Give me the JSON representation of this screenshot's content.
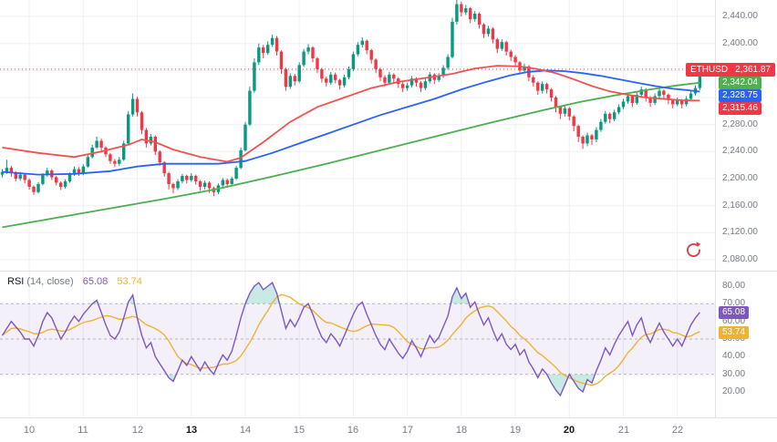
{
  "rsi_legend": {
    "title": "RSI",
    "params": "(14, close)",
    "value": "65.08",
    "ma_value": "53.74"
  },
  "colors": {
    "up": "#089981",
    "down": "#f23645",
    "ma_fast": "#ef5350",
    "ma_mid": "#2962ff",
    "ma_slow": "#4caf50",
    "rsi": "#7e57c2",
    "rsi_signal": "#f0b232",
    "band_fill": "rgba(126,87,194,0.09)",
    "band_line": "rgba(120,123,134,0.5)",
    "ob_fill": "rgba(8,153,129,0.22)",
    "grid": "#edf0f5",
    "axis_text": "#787b86",
    "price_line": "#f23645",
    "boost_icon": "#d4434e"
  },
  "chart_data": {
    "type": "candlestick",
    "symbol": "ETHUSD",
    "last_price": 2361.87,
    "price_line_value": 2361.87,
    "pre_candles": 6,
    "candles_per_day": 12,
    "price_axis": {
      "ticks": [
        2440,
        2400,
        2360,
        2320,
        2280,
        2240,
        2200,
        2160,
        2120,
        2080
      ]
    },
    "rsi_axis": {
      "ticks": [
        80,
        70,
        60,
        50,
        40,
        30,
        20
      ]
    },
    "band": {
      "upper": 70,
      "middle": 50,
      "lower": 30
    },
    "signal_period": 10,
    "time_axis": {
      "labels": [
        {
          "text": "10",
          "bold": false
        },
        {
          "text": "11",
          "bold": false
        },
        {
          "text": "12",
          "bold": false
        },
        {
          "text": "13",
          "bold": true
        },
        {
          "text": "14",
          "bold": false
        },
        {
          "text": "15",
          "bold": false
        },
        {
          "text": "16",
          "bold": false
        },
        {
          "text": "17",
          "bold": false
        },
        {
          "text": "18",
          "bold": false
        },
        {
          "text": "19",
          "bold": false
        },
        {
          "text": "20",
          "bold": true
        },
        {
          "text": "21",
          "bold": false
        },
        {
          "text": "22",
          "bold": false
        }
      ]
    },
    "price_badges": [
      {
        "label": "ETHUSD",
        "value": "2,361.87",
        "price": 2361.87,
        "color": "#f23645"
      },
      {
        "value": "2,342.04",
        "price": 2342.04,
        "color": "#4caf50"
      },
      {
        "value": "2,328.75",
        "price": 2328.75,
        "color": "#2962ff"
      },
      {
        "value": "2,315.46",
        "price": 2315.46,
        "color": "#f23645"
      }
    ],
    "rsi_badges": [
      {
        "value": "65.08",
        "v": 65.08,
        "color": "#7e57c2"
      },
      {
        "value": "53.74",
        "v": 53.74,
        "color": "#f0b232"
      }
    ],
    "candles": [
      [
        2206,
        2214,
        2202,
        2210
      ],
      [
        2210,
        2228,
        2207,
        2216
      ],
      [
        2216,
        2219,
        2203,
        2208
      ],
      [
        2208,
        2211,
        2196,
        2200
      ],
      [
        2200,
        2210,
        2197,
        2206
      ],
      [
        2206,
        2208,
        2193,
        2198
      ],
      [
        2198,
        2200,
        2184,
        2188
      ],
      [
        2188,
        2190,
        2176,
        2180
      ],
      [
        2180,
        2195,
        2178,
        2192
      ],
      [
        2192,
        2208,
        2190,
        2205
      ],
      [
        2205,
        2216,
        2203,
        2212
      ],
      [
        2212,
        2214,
        2198,
        2202
      ],
      [
        2202,
        2204,
        2190,
        2194
      ],
      [
        2194,
        2196,
        2183,
        2188
      ],
      [
        2188,
        2199,
        2185,
        2196
      ],
      [
        2196,
        2209,
        2194,
        2206
      ],
      [
        2206,
        2218,
        2204,
        2214
      ],
      [
        2214,
        2217,
        2204,
        2208
      ],
      [
        2208,
        2221,
        2205,
        2218
      ],
      [
        2218,
        2235,
        2216,
        2232
      ],
      [
        2232,
        2250,
        2230,
        2246
      ],
      [
        2246,
        2262,
        2244,
        2256
      ],
      [
        2256,
        2259,
        2241,
        2246
      ],
      [
        2246,
        2248,
        2232,
        2236
      ],
      [
        2236,
        2238,
        2222,
        2226
      ],
      [
        2226,
        2229,
        2217,
        2222
      ],
      [
        2222,
        2232,
        2219,
        2228
      ],
      [
        2228,
        2256,
        2226,
        2252
      ],
      [
        2252,
        2300,
        2250,
        2295
      ],
      [
        2295,
        2326,
        2292,
        2318
      ],
      [
        2318,
        2321,
        2292,
        2298
      ],
      [
        2298,
        2300,
        2266,
        2272
      ],
      [
        2272,
        2275,
        2246,
        2252
      ],
      [
        2252,
        2266,
        2249,
        2262
      ],
      [
        2262,
        2264,
        2235,
        2240
      ],
      [
        2240,
        2242,
        2219,
        2224
      ],
      [
        2224,
        2226,
        2203,
        2208
      ],
      [
        2208,
        2210,
        2184,
        2192
      ],
      [
        2192,
        2194,
        2178,
        2186
      ],
      [
        2186,
        2199,
        2183,
        2196
      ],
      [
        2196,
        2207,
        2193,
        2204
      ],
      [
        2204,
        2206,
        2193,
        2198
      ],
      [
        2198,
        2208,
        2195,
        2204
      ],
      [
        2204,
        2206,
        2191,
        2196
      ],
      [
        2196,
        2198,
        2182,
        2188
      ],
      [
        2188,
        2197,
        2184,
        2194
      ],
      [
        2194,
        2196,
        2179,
        2186
      ],
      [
        2186,
        2188,
        2174,
        2180
      ],
      [
        2180,
        2193,
        2177,
        2190
      ],
      [
        2190,
        2201,
        2187,
        2198
      ],
      [
        2198,
        2200,
        2187,
        2192
      ],
      [
        2192,
        2203,
        2189,
        2200
      ],
      [
        2200,
        2219,
        2198,
        2216
      ],
      [
        2216,
        2246,
        2214,
        2242
      ],
      [
        2242,
        2284,
        2240,
        2280
      ],
      [
        2280,
        2336,
        2278,
        2330
      ],
      [
        2330,
        2378,
        2327,
        2372
      ],
      [
        2372,
        2400,
        2368,
        2394
      ],
      [
        2394,
        2398,
        2378,
        2386
      ],
      [
        2386,
        2403,
        2383,
        2398
      ],
      [
        2398,
        2413,
        2395,
        2408
      ],
      [
        2408,
        2411,
        2382,
        2388
      ],
      [
        2388,
        2390,
        2355,
        2362
      ],
      [
        2362,
        2364,
        2330,
        2336
      ],
      [
        2336,
        2356,
        2333,
        2352
      ],
      [
        2352,
        2355,
        2338,
        2344
      ],
      [
        2344,
        2372,
        2342,
        2368
      ],
      [
        2368,
        2392,
        2365,
        2388
      ],
      [
        2388,
        2399,
        2384,
        2394
      ],
      [
        2394,
        2396,
        2372,
        2378
      ],
      [
        2378,
        2380,
        2356,
        2362
      ],
      [
        2362,
        2364,
        2342,
        2348
      ],
      [
        2348,
        2351,
        2336,
        2342
      ],
      [
        2342,
        2358,
        2339,
        2354
      ],
      [
        2354,
        2357,
        2341,
        2346
      ],
      [
        2346,
        2348,
        2332,
        2338
      ],
      [
        2338,
        2354,
        2335,
        2350
      ],
      [
        2350,
        2366,
        2347,
        2362
      ],
      [
        2362,
        2388,
        2359,
        2384
      ],
      [
        2384,
        2402,
        2381,
        2398
      ],
      [
        2398,
        2409,
        2394,
        2404
      ],
      [
        2404,
        2406,
        2384,
        2390
      ],
      [
        2390,
        2392,
        2370,
        2376
      ],
      [
        2376,
        2378,
        2356,
        2362
      ],
      [
        2362,
        2364,
        2344,
        2350
      ],
      [
        2350,
        2353,
        2336,
        2342
      ],
      [
        2342,
        2358,
        2339,
        2354
      ],
      [
        2354,
        2356,
        2342,
        2348
      ],
      [
        2348,
        2350,
        2334,
        2340
      ],
      [
        2340,
        2343,
        2328,
        2334
      ],
      [
        2334,
        2342,
        2330,
        2338
      ],
      [
        2338,
        2352,
        2335,
        2348
      ],
      [
        2348,
        2350,
        2336,
        2342
      ],
      [
        2342,
        2344,
        2328,
        2334
      ],
      [
        2334,
        2348,
        2331,
        2344
      ],
      [
        2344,
        2358,
        2341,
        2354
      ],
      [
        2354,
        2356,
        2340,
        2346
      ],
      [
        2346,
        2356,
        2343,
        2352
      ],
      [
        2352,
        2368,
        2349,
        2364
      ],
      [
        2364,
        2384,
        2361,
        2380
      ],
      [
        2380,
        2438,
        2378,
        2432
      ],
      [
        2432,
        2466,
        2428,
        2458
      ],
      [
        2458,
        2462,
        2440,
        2446
      ],
      [
        2446,
        2457,
        2442,
        2452
      ],
      [
        2452,
        2454,
        2430,
        2436
      ],
      [
        2436,
        2448,
        2432,
        2444
      ],
      [
        2444,
        2446,
        2422,
        2428
      ],
      [
        2428,
        2430,
        2408,
        2414
      ],
      [
        2414,
        2426,
        2410,
        2422
      ],
      [
        2422,
        2424,
        2400,
        2406
      ],
      [
        2406,
        2408,
        2386,
        2392
      ],
      [
        2392,
        2406,
        2389,
        2402
      ],
      [
        2402,
        2404,
        2382,
        2388
      ],
      [
        2388,
        2391,
        2374,
        2380
      ],
      [
        2380,
        2383,
        2366,
        2372
      ],
      [
        2372,
        2374,
        2354,
        2360
      ],
      [
        2360,
        2370,
        2356,
        2366
      ],
      [
        2366,
        2368,
        2344,
        2350
      ],
      [
        2350,
        2353,
        2336,
        2342
      ],
      [
        2342,
        2344,
        2324,
        2330
      ],
      [
        2330,
        2344,
        2326,
        2340
      ],
      [
        2340,
        2342,
        2326,
        2332
      ],
      [
        2332,
        2334,
        2314,
        2320
      ],
      [
        2320,
        2322,
        2298,
        2306
      ],
      [
        2306,
        2308,
        2288,
        2296
      ],
      [
        2296,
        2308,
        2292,
        2304
      ],
      [
        2304,
        2306,
        2286,
        2292
      ],
      [
        2292,
        2294,
        2270,
        2278
      ],
      [
        2278,
        2280,
        2254,
        2262
      ],
      [
        2262,
        2264,
        2244,
        2252
      ],
      [
        2252,
        2268,
        2248,
        2264
      ],
      [
        2264,
        2266,
        2250,
        2258
      ],
      [
        2258,
        2276,
        2254,
        2272
      ],
      [
        2272,
        2288,
        2269,
        2284
      ],
      [
        2284,
        2300,
        2281,
        2296
      ],
      [
        2296,
        2298,
        2282,
        2288
      ],
      [
        2288,
        2302,
        2285,
        2298
      ],
      [
        2298,
        2310,
        2295,
        2306
      ],
      [
        2306,
        2318,
        2303,
        2314
      ],
      [
        2314,
        2326,
        2311,
        2322
      ],
      [
        2322,
        2324,
        2306,
        2312
      ],
      [
        2312,
        2328,
        2309,
        2324
      ],
      [
        2324,
        2336,
        2321,
        2332
      ],
      [
        2332,
        2334,
        2314,
        2320
      ],
      [
        2320,
        2322,
        2306,
        2312
      ],
      [
        2312,
        2326,
        2309,
        2322
      ],
      [
        2322,
        2334,
        2319,
        2330
      ],
      [
        2330,
        2332,
        2318,
        2324
      ],
      [
        2324,
        2326,
        2310,
        2316
      ],
      [
        2316,
        2318,
        2304,
        2310
      ],
      [
        2310,
        2320,
        2307,
        2316
      ],
      [
        2316,
        2318,
        2304,
        2310
      ],
      [
        2310,
        2322,
        2307,
        2318
      ],
      [
        2318,
        2330,
        2315,
        2326
      ],
      [
        2326,
        2338,
        2323,
        2334
      ],
      [
        2334,
        2364,
        2331,
        2361.87
      ]
    ],
    "rsi": [
      52,
      56,
      60,
      57,
      54,
      50,
      50,
      46,
      52,
      60,
      65,
      62,
      56,
      50,
      54,
      59,
      63,
      60,
      64,
      67,
      70,
      72,
      65,
      58,
      52,
      50,
      54,
      62,
      71,
      75,
      62,
      52,
      45,
      48,
      40,
      36,
      32,
      28,
      26,
      32,
      38,
      35,
      40,
      36,
      32,
      37,
      33,
      30,
      36,
      41,
      38,
      43,
      52,
      62,
      70,
      76,
      80,
      82,
      78,
      80,
      82,
      76,
      66,
      56,
      61,
      57,
      62,
      68,
      70,
      64,
      57,
      51,
      48,
      53,
      50,
      46,
      52,
      58,
      64,
      69,
      71,
      64,
      58,
      52,
      47,
      44,
      50,
      46,
      42,
      39,
      43,
      49,
      45,
      40,
      46,
      52,
      48,
      51,
      57,
      63,
      74,
      79,
      73,
      76,
      68,
      71,
      64,
      58,
      62,
      55,
      49,
      53,
      47,
      44,
      47,
      41,
      44,
      37,
      33,
      28,
      33,
      30,
      25,
      21,
      18,
      24,
      30,
      26,
      22,
      20,
      27,
      25,
      32,
      38,
      45,
      41,
      47,
      52,
      56,
      60,
      52,
      58,
      62,
      53,
      48,
      54,
      59,
      54,
      50,
      46,
      50,
      46,
      52,
      58,
      62,
      65.08
    ],
    "ma_fast_points": [
      [
        0,
        2246
      ],
      [
        8,
        2238
      ],
      [
        16,
        2232
      ],
      [
        22,
        2240
      ],
      [
        28,
        2250
      ],
      [
        31,
        2258
      ],
      [
        34,
        2254
      ],
      [
        38,
        2243
      ],
      [
        44,
        2232
      ],
      [
        50,
        2225
      ],
      [
        53,
        2231
      ],
      [
        58,
        2254
      ],
      [
        64,
        2284
      ],
      [
        70,
        2306
      ],
      [
        76,
        2320
      ],
      [
        82,
        2334
      ],
      [
        88,
        2343
      ],
      [
        94,
        2349
      ],
      [
        100,
        2355
      ],
      [
        105,
        2363
      ],
      [
        110,
        2367
      ],
      [
        115,
        2366
      ],
      [
        119,
        2362
      ],
      [
        123,
        2356
      ],
      [
        127,
        2347
      ],
      [
        131,
        2337
      ],
      [
        135,
        2329
      ],
      [
        139,
        2324
      ],
      [
        143,
        2320
      ],
      [
        147,
        2318
      ],
      [
        151,
        2316
      ],
      [
        155,
        2315.46
      ]
    ],
    "ma_mid_points": [
      [
        0,
        2210
      ],
      [
        8,
        2206
      ],
      [
        16,
        2207
      ],
      [
        24,
        2211
      ],
      [
        30,
        2218
      ],
      [
        36,
        2222
      ],
      [
        42,
        2222
      ],
      [
        48,
        2222
      ],
      [
        54,
        2226
      ],
      [
        60,
        2238
      ],
      [
        66,
        2252
      ],
      [
        72,
        2266
      ],
      [
        78,
        2280
      ],
      [
        84,
        2294
      ],
      [
        90,
        2306
      ],
      [
        96,
        2318
      ],
      [
        102,
        2332
      ],
      [
        108,
        2344
      ],
      [
        113,
        2353
      ],
      [
        117,
        2358
      ],
      [
        121,
        2360
      ],
      [
        125,
        2359
      ],
      [
        129,
        2356
      ],
      [
        133,
        2352
      ],
      [
        137,
        2347
      ],
      [
        141,
        2342
      ],
      [
        145,
        2337
      ],
      [
        149,
        2333
      ],
      [
        152,
        2331
      ],
      [
        155,
        2328.75
      ]
    ],
    "ma_slow_points": [
      [
        0,
        2128
      ],
      [
        12,
        2142
      ],
      [
        24,
        2156
      ],
      [
        36,
        2170
      ],
      [
        48,
        2185
      ],
      [
        60,
        2203
      ],
      [
        72,
        2222
      ],
      [
        84,
        2242
      ],
      [
        96,
        2262
      ],
      [
        108,
        2282
      ],
      [
        120,
        2301
      ],
      [
        128,
        2313
      ],
      [
        136,
        2323
      ],
      [
        144,
        2332
      ],
      [
        150,
        2338
      ],
      [
        155,
        2342.04
      ]
    ]
  }
}
